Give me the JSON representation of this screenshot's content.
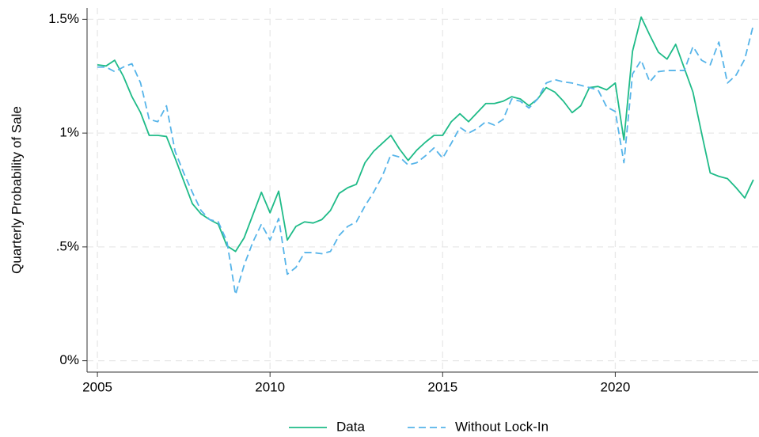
{
  "chart_data": {
    "type": "line",
    "y_label": "Quarterly Probability of Sale",
    "x": [
      2005,
      2005.25,
      2005.5,
      2005.75,
      2006,
      2006.25,
      2006.5,
      2006.75,
      2007,
      2007.25,
      2007.5,
      2007.75,
      2008,
      2008.25,
      2008.5,
      2008.75,
      2009,
      2009.25,
      2009.5,
      2009.75,
      2010,
      2010.25,
      2010.5,
      2010.75,
      2011,
      2011.25,
      2011.5,
      2011.75,
      2012,
      2012.25,
      2012.5,
      2012.75,
      2013,
      2013.25,
      2013.5,
      2013.75,
      2014,
      2014.25,
      2014.5,
      2014.75,
      2015,
      2015.25,
      2015.5,
      2015.75,
      2016,
      2016.25,
      2016.5,
      2016.75,
      2017,
      2017.25,
      2017.5,
      2017.75,
      2018,
      2018.25,
      2018.5,
      2018.75,
      2019,
      2019.25,
      2019.5,
      2019.75,
      2020,
      2020.25,
      2020.5,
      2020.75,
      2021,
      2021.25,
      2021.5,
      2021.75,
      2022,
      2022.25,
      2022.5,
      2022.75,
      2023,
      2023.25,
      2023.5,
      2023.75,
      2024
    ],
    "series": [
      {
        "name": "Data",
        "color": "#1fbb88",
        "dashed": false,
        "values": [
          1.3,
          1.295,
          1.32,
          1.25,
          1.16,
          1.09,
          0.99,
          0.99,
          0.985,
          0.89,
          0.79,
          0.69,
          0.645,
          0.62,
          0.6,
          0.505,
          0.48,
          0.54,
          0.64,
          0.74,
          0.65,
          0.745,
          0.53,
          0.59,
          0.61,
          0.605,
          0.62,
          0.66,
          0.735,
          0.76,
          0.775,
          0.87,
          0.92,
          0.955,
          0.99,
          0.93,
          0.88,
          0.925,
          0.96,
          0.99,
          0.99,
          1.05,
          1.085,
          1.05,
          1.09,
          1.13,
          1.13,
          1.14,
          1.16,
          1.15,
          1.12,
          1.15,
          1.2,
          1.18,
          1.14,
          1.09,
          1.12,
          1.2,
          1.205,
          1.19,
          1.22,
          0.97,
          1.36,
          1.51,
          1.43,
          1.355,
          1.325,
          1.39,
          1.285,
          1.18,
          1.0,
          0.825,
          0.81,
          0.8,
          0.76,
          0.715,
          0.795
        ]
      },
      {
        "name": "Without Lock-In",
        "color": "#56b4e9",
        "dashed": true,
        "values": [
          1.29,
          1.29,
          1.27,
          1.29,
          1.305,
          1.22,
          1.06,
          1.05,
          1.12,
          0.92,
          0.825,
          0.74,
          0.66,
          0.62,
          0.61,
          0.525,
          0.29,
          0.42,
          0.52,
          0.6,
          0.53,
          0.625,
          0.38,
          0.41,
          0.475,
          0.475,
          0.47,
          0.48,
          0.55,
          0.59,
          0.61,
          0.68,
          0.74,
          0.81,
          0.905,
          0.895,
          0.86,
          0.87,
          0.9,
          0.935,
          0.89,
          0.955,
          1.025,
          1.0,
          1.02,
          1.05,
          1.035,
          1.06,
          1.15,
          1.14,
          1.11,
          1.15,
          1.22,
          1.235,
          1.225,
          1.22,
          1.21,
          1.2,
          1.19,
          1.115,
          1.095,
          0.87,
          1.26,
          1.32,
          1.225,
          1.27,
          1.275,
          1.275,
          1.275,
          1.38,
          1.32,
          1.3,
          1.4,
          1.22,
          1.255,
          1.325,
          1.475
        ]
      }
    ],
    "xlim": [
      2004.7,
      2024.14
    ],
    "xticks": [
      2005,
      2010,
      2015,
      2020
    ],
    "ylim": [
      -0.05,
      1.55
    ],
    "yticks": [
      {
        "value": 0,
        "label": "0%"
      },
      {
        "value": 0.5,
        "label": ".5%"
      },
      {
        "value": 1,
        "label": "1%"
      },
      {
        "value": 1.5,
        "label": "1.5%"
      }
    ],
    "grid": true,
    "legend": "bottom"
  }
}
